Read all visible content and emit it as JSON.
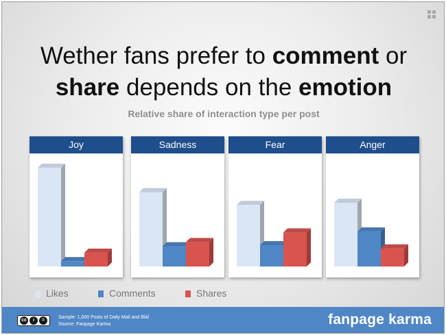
{
  "title": {
    "part1": "Wether fans prefer to ",
    "bold1": "comment",
    "part2": " or",
    "bold2": "share",
    "part3": " depends on the ",
    "bold3": "emotion"
  },
  "colors": {
    "Likes": "#dbe6f5",
    "Comments": "#4f86c6",
    "Shares": "#d9534f"
  },
  "chart_data": {
    "type": "bar",
    "title": "",
    "subtitle": "Relative share of interaction type per post",
    "panels": [
      "Joy",
      "Sadness",
      "Fear",
      "Anger"
    ],
    "categories": [
      "Likes",
      "Comments",
      "Shares"
    ],
    "series": [
      {
        "panel": "Joy",
        "values": [
          0.93,
          0.05,
          0.13
        ]
      },
      {
        "panel": "Sadness",
        "values": [
          0.7,
          0.19,
          0.23
        ]
      },
      {
        "panel": "Fear",
        "values": [
          0.58,
          0.2,
          0.32
        ]
      },
      {
        "panel": "Anger",
        "values": [
          0.6,
          0.33,
          0.17
        ]
      }
    ],
    "legend": [
      "Likes",
      "Comments",
      "Shares"
    ],
    "legend_position": "bottom-left",
    "axes_visible": false,
    "grid": false
  },
  "footer": {
    "line1": "Sample: 1,000 Posts of Daily Mail and Bild",
    "line2": "Source: Fanpage Karma",
    "brand": "fanpage karma",
    "license_icon": "creative-commons-icon"
  }
}
